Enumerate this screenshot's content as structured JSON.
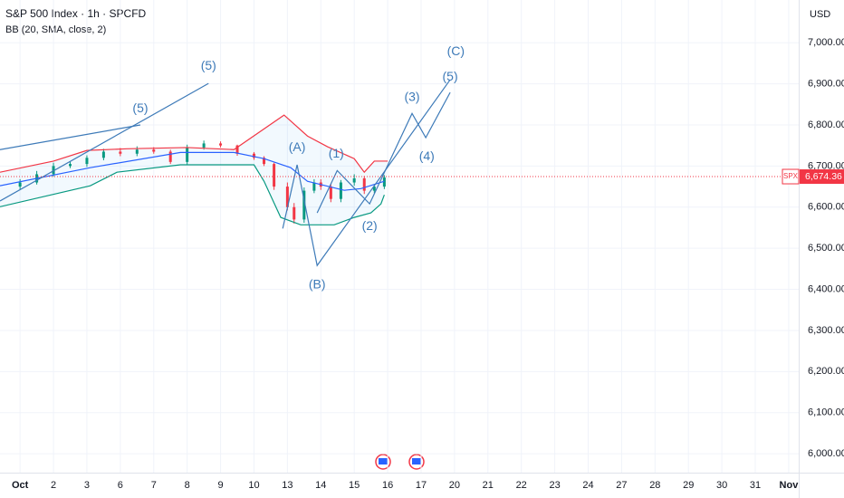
{
  "chart_data": {
    "type": "candlestick",
    "title": "S&P 500 Index · 1h · SPCFD",
    "indicator": "BB (20, SMA, close, 2)",
    "currency": "USD",
    "grid": true,
    "xlim": [
      -0.6,
      23.3
    ],
    "ylim": [
      5954,
      7104
    ],
    "xticks": [
      {
        "value": 0,
        "label": "Oct"
      },
      {
        "value": 1,
        "label": "2"
      },
      {
        "value": 2,
        "label": "3"
      },
      {
        "value": 3,
        "label": "6"
      },
      {
        "value": 4,
        "label": "7"
      },
      {
        "value": 5,
        "label": "8"
      },
      {
        "value": 6,
        "label": "9"
      },
      {
        "value": 7,
        "label": "10"
      },
      {
        "value": 8,
        "label": "13"
      },
      {
        "value": 9,
        "label": "14"
      },
      {
        "value": 10,
        "label": "15"
      },
      {
        "value": 11,
        "label": "16"
      },
      {
        "value": 12,
        "label": "17"
      },
      {
        "value": 13,
        "label": "20"
      },
      {
        "value": 14,
        "label": "21"
      },
      {
        "value": 15,
        "label": "22"
      },
      {
        "value": 16,
        "label": "23"
      },
      {
        "value": 17,
        "label": "24"
      },
      {
        "value": 18,
        "label": "27"
      },
      {
        "value": 19,
        "label": "28"
      },
      {
        "value": 20,
        "label": "29"
      },
      {
        "value": 21,
        "label": "30"
      },
      {
        "value": 22,
        "label": "31"
      },
      {
        "value": 23,
        "label": "Nov"
      }
    ],
    "yticks": [
      {
        "value": 6000,
        "label": "6,000.00"
      },
      {
        "value": 6100,
        "label": "6,100.00"
      },
      {
        "value": 6200,
        "label": "6,200.00"
      },
      {
        "value": 6300,
        "label": "6,300.00"
      },
      {
        "value": 6400,
        "label": "6,400.00"
      },
      {
        "value": 6500,
        "label": "6,500.00"
      },
      {
        "value": 6600,
        "label": "6,600.00"
      },
      {
        "value": 6700,
        "label": "6,700.00"
      },
      {
        "value": 6800,
        "label": "6,800.00"
      },
      {
        "value": 6900,
        "label": "6,900.00"
      },
      {
        "value": 7000,
        "label": "7,000.00"
      }
    ],
    "last_price": {
      "value": 6674.36,
      "label": "6,674.36",
      "symbol": "SPX",
      "color": "#f23645"
    },
    "candles": {
      "up_color": "#089981",
      "down_color": "#f23645",
      "x": [
        0,
        0.5,
        1,
        1.5,
        2,
        2.5,
        3,
        3.5,
        4,
        4.5,
        5,
        5.5,
        6,
        6.5,
        7,
        7.3,
        7.6,
        8,
        8.2,
        8.5,
        8.8,
        9,
        9.3,
        9.6,
        10,
        10.3,
        10.6,
        10.9
      ],
      "open": [
        6650,
        6660,
        6680,
        6700,
        6705,
        6720,
        6735,
        6730,
        6740,
        6735,
        6710,
        6745,
        6755,
        6750,
        6730,
        6720,
        6705,
        6650,
        6600,
        6570,
        6640,
        6660,
        6650,
        6620,
        6660,
        6670,
        6640,
        6650
      ],
      "high": [
        6668,
        6688,
        6708,
        6712,
        6726,
        6742,
        6744,
        6748,
        6746,
        6740,
        6752,
        6762,
        6760,
        6752,
        6734,
        6724,
        6708,
        6660,
        6610,
        6648,
        6668,
        6668,
        6656,
        6666,
        6680,
        6676,
        6656,
        6678
      ],
      "low": [
        6642,
        6655,
        6674,
        6695,
        6698,
        6714,
        6724,
        6724,
        6730,
        6705,
        6704,
        6740,
        6745,
        6725,
        6715,
        6700,
        6642,
        6592,
        6560,
        6562,
        6634,
        6642,
        6612,
        6612,
        6652,
        6632,
        6634,
        6644
      ],
      "close": [
        6660,
        6680,
        6700,
        6705,
        6720,
        6735,
        6730,
        6740,
        6735,
        6710,
        6745,
        6755,
        6750,
        6730,
        6720,
        6705,
        6650,
        6600,
        6570,
        6640,
        6660,
        6650,
        6620,
        6660,
        6670,
        6640,
        6650,
        6672
      ]
    },
    "series": [
      {
        "color": "#f23645",
        "x": [
          -0.6,
          1,
          2,
          3.2,
          5,
          6.4,
          7.9,
          8.6,
          9.2,
          10,
          10.3,
          10.6,
          11
        ],
        "values": [
          6685,
          6712,
          6738,
          6742,
          6745,
          6740,
          6824,
          6773,
          6747,
          6718,
          6685,
          6712,
          6712
        ]
      },
      {
        "color": "#2962ff",
        "x": [
          -0.6,
          2.1,
          4.8,
          6.4,
          7.3,
          8.1,
          8.6,
          9.7,
          10.2,
          10.9
        ],
        "values": [
          6652,
          6696,
          6733,
          6733,
          6718,
          6696,
          6663,
          6641,
          6645,
          6663
        ]
      },
      {
        "color": "#089981",
        "x": [
          -0.6,
          2.1,
          2.9,
          4.8,
          7,
          7.3,
          7.8,
          8.4,
          9.4,
          10,
          10.5,
          10.8,
          10.9
        ],
        "values": [
          6601,
          6652,
          6685,
          6703,
          6703,
          6663,
          6575,
          6557,
          6557,
          6575,
          6586,
          6608,
          6630
        ]
      },
      {
        "color": "#3d7ab8",
        "x": [
          -0.6,
          3.6
        ],
        "values": [
          6740,
          6800
        ]
      },
      {
        "color": "#3d7ab8",
        "x": [
          -0.6,
          5.64
        ],
        "values": [
          6615,
          6901
        ]
      },
      {
        "color": "#3d7ab8",
        "x": [
          7.86,
          8.29,
          8.89,
          12.87
        ],
        "values": [
          6548,
          6703,
          6458,
          6910
        ]
      },
      {
        "color": "#3d7ab8",
        "x": [
          8.89,
          9.49,
          10.46,
          11.73,
          12.14,
          12.87
        ],
        "values": [
          6586,
          6689,
          6608,
          6828,
          6769,
          6879
        ]
      }
    ],
    "annotations": [
      {
        "text": "(5)",
        "x": 3.6,
        "y": 6839
      },
      {
        "text": "(5)",
        "x": 5.64,
        "y": 6943
      },
      {
        "text": "(A)",
        "x": 8.29,
        "y": 6744
      },
      {
        "text": "(1)",
        "x": 9.46,
        "y": 6729
      },
      {
        "text": "(B)",
        "x": 8.89,
        "y": 6410
      },
      {
        "text": "(2)",
        "x": 10.46,
        "y": 6553
      },
      {
        "text": "(3)",
        "x": 11.73,
        "y": 6866
      },
      {
        "text": "(4)",
        "x": 12.17,
        "y": 6722
      },
      {
        "text": "(5)",
        "x": 12.87,
        "y": 6916
      },
      {
        "text": "(C)",
        "x": 13.04,
        "y": 6978
      }
    ]
  }
}
